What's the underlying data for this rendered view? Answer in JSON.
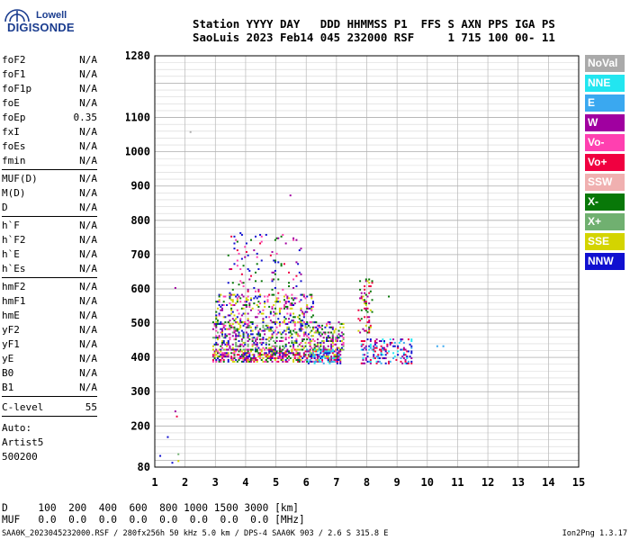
{
  "logo": {
    "line1": "Lowell",
    "line2": "DIGISONDE"
  },
  "header": {
    "row1": "Station YYYY DAY   DDD HHMMSS P1  FFS S AXN PPS IGA PS",
    "row2": "SaoLuis 2023 Feb14 045 232000 RSF     1 715 100 00- 11"
  },
  "params_group1": [
    {
      "name": "foF2",
      "value": "N/A"
    },
    {
      "name": "foF1",
      "value": "N/A"
    },
    {
      "name": "foF1p",
      "value": "N/A"
    },
    {
      "name": "foE",
      "value": "N/A"
    },
    {
      "name": "foEp",
      "value": "0.35"
    },
    {
      "name": "fxI",
      "value": "N/A"
    },
    {
      "name": "foEs",
      "value": "N/A"
    },
    {
      "name": "fmin",
      "value": "N/A"
    }
  ],
  "params_group2": [
    {
      "name": "MUF(D)",
      "value": "N/A"
    },
    {
      "name": "M(D)",
      "value": "N/A"
    },
    {
      "name": "D",
      "value": "N/A"
    }
  ],
  "params_group3": [
    {
      "name": "h`F",
      "value": "N/A"
    },
    {
      "name": "h`F2",
      "value": "N/A"
    },
    {
      "name": "h`E",
      "value": "N/A"
    },
    {
      "name": "h`Es",
      "value": "N/A"
    }
  ],
  "params_group4": [
    {
      "name": "hmF2",
      "value": "N/A"
    },
    {
      "name": "hmF1",
      "value": "N/A"
    },
    {
      "name": "hmE",
      "value": "N/A"
    },
    {
      "name": "yF2",
      "value": "N/A"
    },
    {
      "name": "yF1",
      "value": "N/A"
    },
    {
      "name": "yE",
      "value": "N/A"
    },
    {
      "name": "B0",
      "value": "N/A"
    },
    {
      "name": "B1",
      "value": "N/A"
    }
  ],
  "clevel": {
    "name": "C-level",
    "value": "55"
  },
  "auto": {
    "line1": "Auto:",
    "line2": "Artist5",
    "line3": "500200"
  },
  "legend": [
    {
      "label": "NoVal",
      "color": "#aaaaaa"
    },
    {
      "label": "NNE",
      "color": "#22e6f0"
    },
    {
      "label": "E",
      "color": "#3aa8f0"
    },
    {
      "label": "W",
      "color": "#a000a0"
    },
    {
      "label": "Vo-",
      "color": "#ff40b0"
    },
    {
      "label": "Vo+",
      "color": "#f00040"
    },
    {
      "label": "SSW",
      "color": "#f0b0b0"
    },
    {
      "label": "X-",
      "color": "#087808"
    },
    {
      "label": "X+",
      "color": "#70b070"
    },
    {
      "label": "SSE",
      "color": "#d4d400"
    },
    {
      "label": "NNW",
      "color": "#1010d0"
    }
  ],
  "footer": {
    "row_d": "D     100  200  400  600  800 1000 1500 3000 [km]",
    "row_muf": "MUF   0.0  0.0  0.0  0.0  0.0  0.0  0.0  0.0 [MHz]",
    "file": "SAA0K_2023045232000.RSF / 280fx256h 50 kHz 5.0 km / DPS-4 SAA0K 903 / 2.6 S 315.8 E",
    "version": "Ion2Png 1.3.17"
  },
  "chart_data": {
    "type": "scatter",
    "xlabel": "",
    "ylabel": "",
    "xlim": [
      1,
      15
    ],
    "ylim": [
      80,
      1280
    ],
    "x_ticks": [
      1,
      2,
      3,
      4,
      5,
      6,
      7,
      8,
      9,
      10,
      11,
      12,
      13,
      14,
      15
    ],
    "y_ticks_major": [
      80,
      200,
      300,
      400,
      500,
      600,
      700,
      800,
      900,
      1000,
      1100,
      1280
    ],
    "clusters": [
      {
        "name": "E-layer band",
        "x_range": [
          2.9,
          7.1
        ],
        "y_range": [
          385,
          420
        ],
        "density": 0.55,
        "colors": [
          "#a000a0",
          "#1010d0",
          "#d4d400",
          "#087808",
          "#ff40b0",
          "#f00040"
        ]
      },
      {
        "name": "lower F trace",
        "x_range": [
          2.9,
          7.2
        ],
        "y_range": [
          420,
          500
        ],
        "density": 0.35,
        "colors": [
          "#a000a0",
          "#d4d400",
          "#087808",
          "#1010d0",
          "#ff40b0",
          "#70b070"
        ]
      },
      {
        "name": "mid F trace",
        "x_range": [
          3.0,
          6.2
        ],
        "y_range": [
          500,
          580
        ],
        "density": 0.22,
        "colors": [
          "#a000a0",
          "#d4d400",
          "#1010d0",
          "#087808",
          "#ff40b0"
        ]
      },
      {
        "name": "upper scatter",
        "x_range": [
          3.4,
          5.8
        ],
        "y_range": [
          580,
          760
        ],
        "density": 0.05,
        "colors": [
          "#a000a0",
          "#1010d0",
          "#ff40b0",
          "#f00040",
          "#087808"
        ]
      },
      {
        "name": "E trace 6-7",
        "x_range": [
          6.0,
          7.1
        ],
        "y_range": [
          380,
          420
        ],
        "density": 0.35,
        "colors": [
          "#3aa8f0",
          "#22e6f0",
          "#1010d0",
          "#a000a0"
        ]
      },
      {
        "name": "8-9 MHz trace",
        "x_range": [
          7.8,
          9.5
        ],
        "y_range": [
          380,
          450
        ],
        "density": 0.3,
        "colors": [
          "#3aa8f0",
          "#22e6f0",
          "#a000a0",
          "#f00040",
          "#1010d0"
        ]
      },
      {
        "name": "8 MHz spread",
        "x_range": [
          7.7,
          8.2
        ],
        "y_range": [
          470,
          630
        ],
        "density": 0.2,
        "colors": [
          "#d4d400",
          "#f00040",
          "#a000a0",
          "#087808"
        ]
      }
    ],
    "outliers": [
      {
        "x": 1.15,
        "y": 110,
        "color": "#1010d0"
      },
      {
        "x": 1.4,
        "y": 165,
        "color": "#1010d0"
      },
      {
        "x": 1.55,
        "y": 90,
        "color": "#1010d0"
      },
      {
        "x": 1.65,
        "y": 240,
        "color": "#a000a0"
      },
      {
        "x": 1.7,
        "y": 225,
        "color": "#f00040"
      },
      {
        "x": 1.75,
        "y": 95,
        "color": "#d4d400"
      },
      {
        "x": 1.75,
        "y": 115,
        "color": "#70b070"
      },
      {
        "x": 2.15,
        "y": 1055,
        "color": "#aaaaaa"
      },
      {
        "x": 1.65,
        "y": 600,
        "color": "#a000a0"
      },
      {
        "x": 5.45,
        "y": 870,
        "color": "#a000a0"
      },
      {
        "x": 10.3,
        "y": 430,
        "color": "#3aa8f0"
      },
      {
        "x": 10.5,
        "y": 430,
        "color": "#3aa8f0"
      },
      {
        "x": 8.7,
        "y": 575,
        "color": "#087808"
      }
    ]
  }
}
